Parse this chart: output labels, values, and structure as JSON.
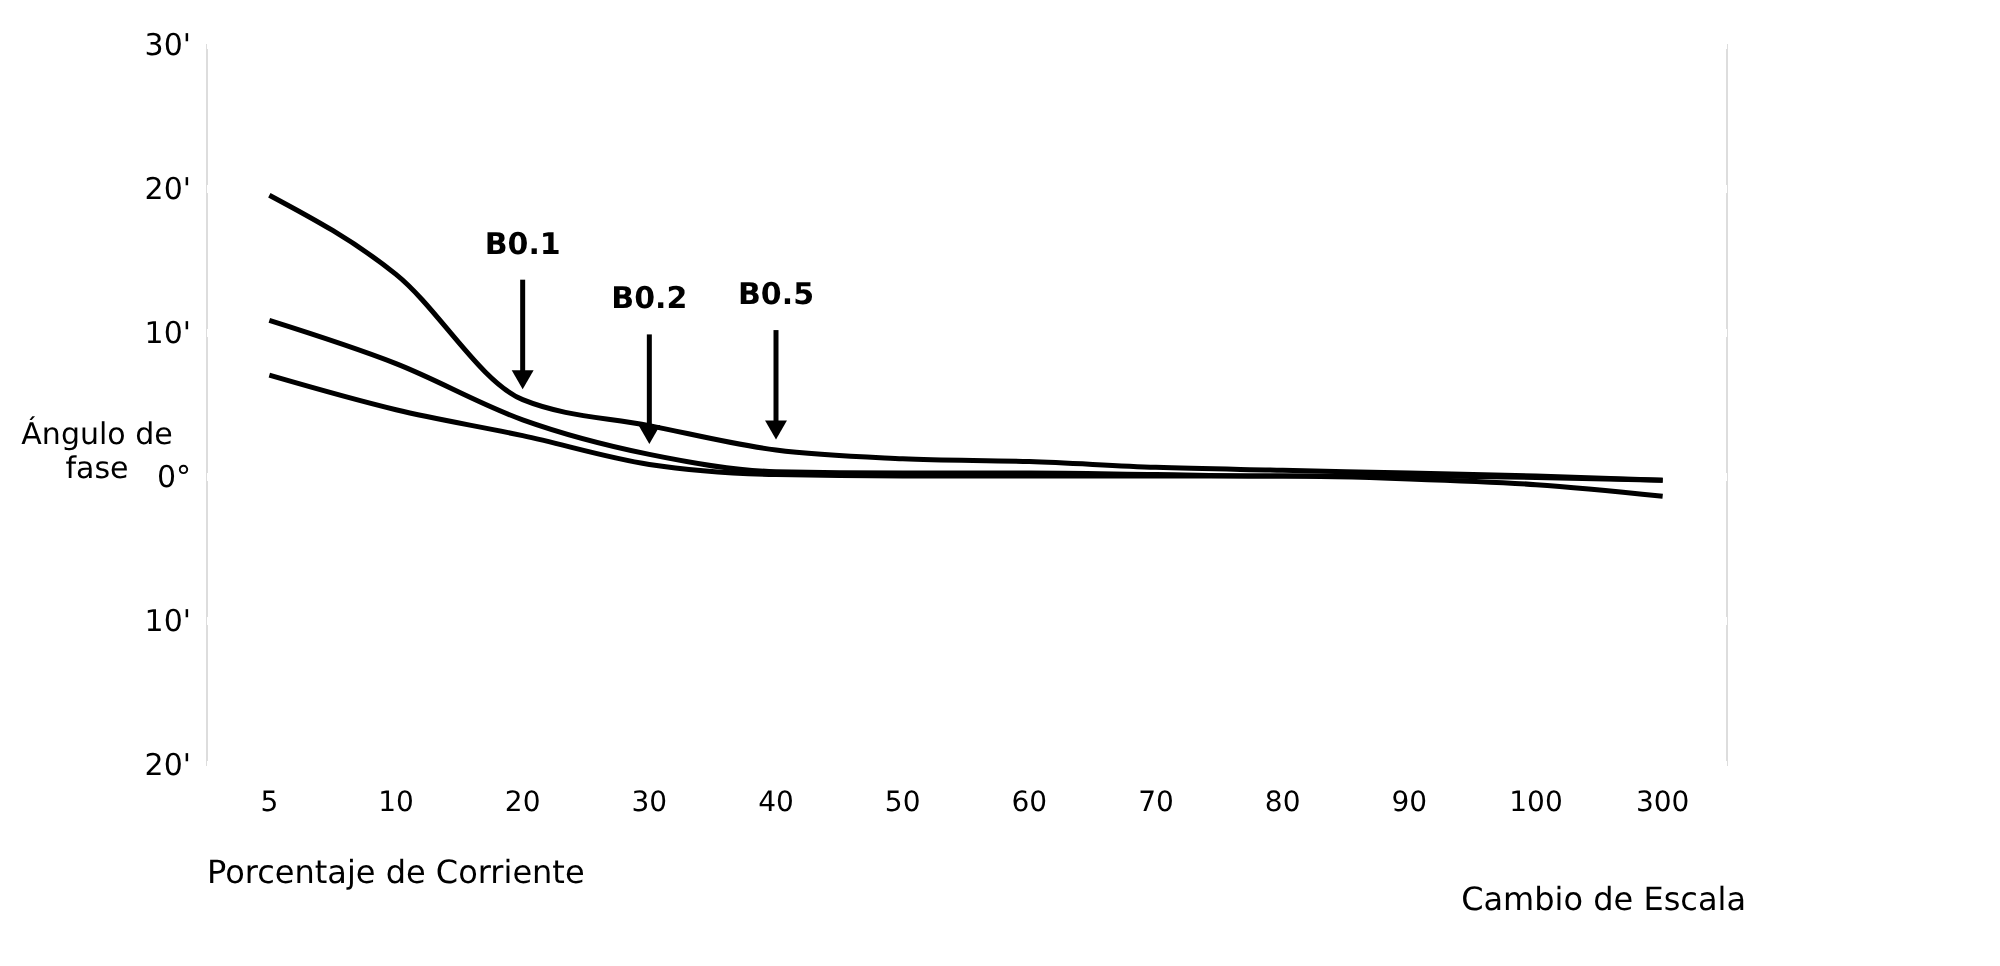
{
  "chart_data": {
    "type": "line",
    "xlabel": "Porcentaje de Corriente",
    "ylabel": "Ángulo de fase",
    "categories": [
      "5",
      "10",
      "20",
      "30",
      "40",
      "50",
      "60",
      "70",
      "80",
      "90",
      "100",
      "300"
    ],
    "series": [
      {
        "color": "#000000",
        "values": [
          19.5,
          14,
          5.3,
          3.5,
          1.8,
          1.2,
          1,
          0.6,
          0.4,
          0.2,
          0,
          -0.3
        ]
      },
      {
        "color": "#000000",
        "values": [
          10.8,
          7.8,
          3.9,
          1.5,
          0.3,
          0.2,
          0.2,
          0.1,
          0,
          0,
          -0.1,
          -0.3
        ]
      },
      {
        "color": "#000000",
        "values": [
          7,
          4.6,
          2.8,
          0.8,
          0.1,
          0,
          0,
          0,
          0,
          -0.2,
          -0.6,
          -1.4
        ]
      }
    ],
    "ylim": [
      -20,
      30
    ],
    "yticks": [
      {
        "value": 30,
        "label": "30'"
      },
      {
        "value": 20,
        "label": "20'"
      },
      {
        "value": 10,
        "label": "10'"
      },
      {
        "value": 0,
        "label": "0°"
      },
      {
        "value": -10,
        "label": "10'"
      },
      {
        "value": -20,
        "label": "20'"
      }
    ],
    "grid": true,
    "annotations": [
      {
        "text": "B0.1",
        "x": "20",
        "y": 5.3
      },
      {
        "text": "B0.2",
        "x": "30",
        "y": 1.5
      },
      {
        "text": "B0.5",
        "x": "40",
        "y": 1.8
      },
      "Cambio de Escala"
    ]
  }
}
